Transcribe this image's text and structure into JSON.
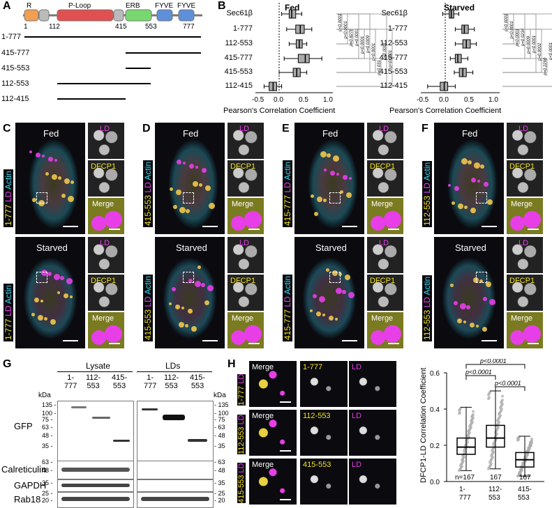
{
  "panel_labels": {
    "a": "A",
    "b": "B",
    "c": "C",
    "d": "D",
    "e": "E",
    "f": "F",
    "g": "G",
    "h": "H"
  },
  "panelA": {
    "domains": {
      "r": "R",
      "ploop": "P-Loop",
      "erb": "ERB",
      "fyve1": "FYVE",
      "fyve2": "FYVE"
    },
    "ticks": {
      "t1": "1",
      "t112": "112",
      "t415": "415",
      "t553": "553",
      "t777": "777"
    },
    "constructs": [
      "1-777",
      "415-777",
      "415-553",
      "112-553",
      "112-415"
    ]
  },
  "panelB": {
    "fed_title": "Fed",
    "starved_title": "Starved",
    "xlabel": "Pearson's Correlation Coefficient",
    "xticks": [
      "-0.5",
      "0.0",
      "0.5",
      "1.0"
    ],
    "rows": [
      "Sec61β",
      "1-777",
      "112-553",
      "415-777",
      "415-553",
      "112-415"
    ],
    "fed_pvalues": [
      "p<0.0001",
      "p<0.0001",
      "p=0.8278",
      "p=0.0001",
      "p<0.0001",
      "p=0.0309",
      "p<0.0001",
      "p=0.031",
      "p<0.0001",
      "p<0.0001"
    ],
    "starved_pvalues": [
      "p<0.0001",
      "p<0.0001",
      "p<0.0001",
      "p=0.0234",
      "p=0.0009",
      "p<0.0001",
      "p=0.0002",
      "p=0.2290",
      "p<0.0001",
      "p<0.0001"
    ]
  },
  "micro_panels": [
    {
      "id": "C",
      "construct": "1-777",
      "top": "Fed",
      "bottom": "Starved",
      "side": "LD Actin"
    },
    {
      "id": "D",
      "construct": "415-553",
      "top": "Fed",
      "bottom": "Starved",
      "side": "LD Actin"
    },
    {
      "id": "E",
      "construct": "415-777",
      "top": "Fed",
      "bottom": "Starved",
      "side": "LD Actin"
    },
    {
      "id": "F",
      "construct": "112-553",
      "top": "Fed",
      "bottom": "Starved",
      "side": "LD Actin"
    }
  ],
  "insets": {
    "ld": "LD",
    "dfcp1": "DFCP1",
    "merge": "Merge"
  },
  "panelG": {
    "lysate": "Lysate",
    "lds": "LDs",
    "lanes": [
      "1-\n777",
      "112-\n553",
      "415-\n553"
    ],
    "lane_labels": [
      "1-",
      "777",
      "112-",
      "553",
      "415-",
      "553"
    ],
    "kda": "kDa",
    "gfp": "GFP",
    "calreticulin": "Calreticulin",
    "gapdh": "GAPDH",
    "rab18": "Rab18",
    "gfp_markers": [
      "135",
      "100",
      "75",
      "63",
      "48",
      "35"
    ],
    "cal_markers": [
      "63",
      "48"
    ],
    "gapdh_markers": [
      "35"
    ],
    "rab_markers": [
      "25",
      "20"
    ]
  },
  "panelH": {
    "rows": [
      {
        "label": "1-777",
        "merge": "Merge",
        "construct": "1-777",
        "ld": "LD"
      },
      {
        "label": "112-553",
        "merge": "Merge",
        "construct": "112-553",
        "ld": "LD"
      },
      {
        "label": "415-553",
        "merge": "Merge",
        "construct": "415-553",
        "ld": "LD"
      }
    ],
    "row_ld": "LD"
  },
  "chart_data": {
    "type": "box",
    "ylabel": "DFCP1-LD Correlation Coefficient",
    "categories": [
      "1-777",
      "112-553",
      "415-553"
    ],
    "ylim": [
      0,
      0.6
    ],
    "yticks": [
      "0.0",
      "0.2",
      "0.4",
      "0.6"
    ],
    "n_labels": [
      "n=167",
      "167",
      "167"
    ],
    "boxes": [
      {
        "min": 0.06,
        "q1": 0.15,
        "median": 0.19,
        "q3": 0.24,
        "max": 0.41
      },
      {
        "min": 0.07,
        "q1": 0.19,
        "median": 0.24,
        "q3": 0.31,
        "max": 0.5
      },
      {
        "min": 0.03,
        "q1": 0.08,
        "median": 0.12,
        "q3": 0.16,
        "max": 0.25
      }
    ],
    "pvalues": [
      "p<0.0001",
      "p<0.0001",
      "p<0.0001"
    ]
  },
  "colors": {
    "yellow": "#f2e21e",
    "magenta": "#e83ee8",
    "cyan": "#3ad8e8",
    "orange": "#f0a050",
    "red": "#e05050",
    "green": "#78d870",
    "blue": "#5f8fd8",
    "grey": "#bbbbbb"
  }
}
